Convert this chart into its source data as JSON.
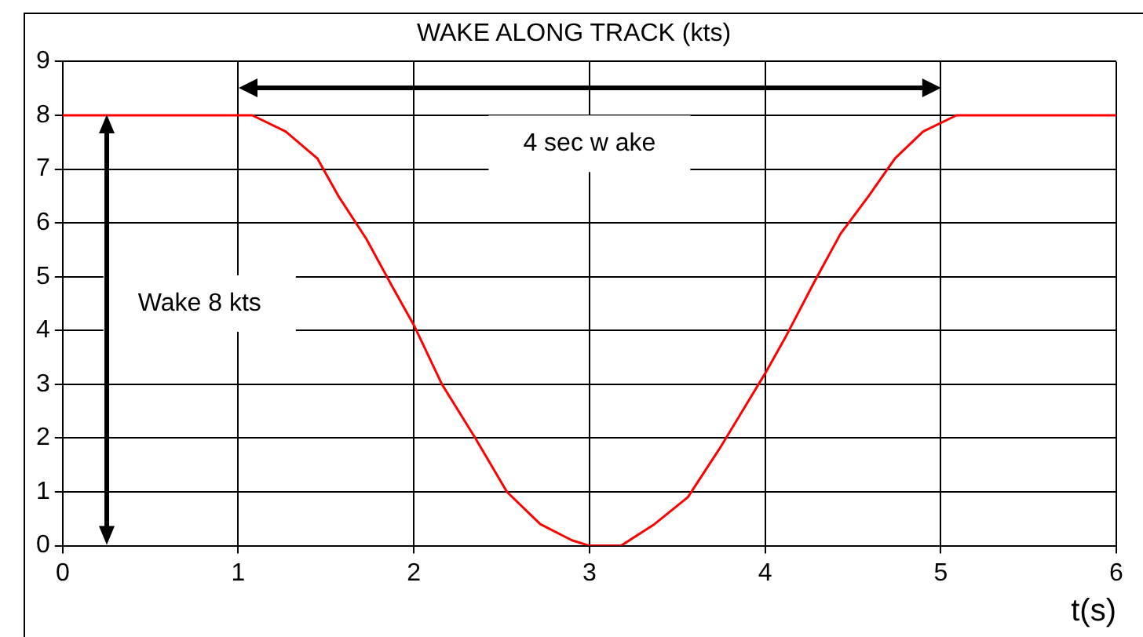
{
  "chart_data": {
    "type": "line",
    "title": "WAKE ALONG TRACK (kts)",
    "xlabel": "t(s)",
    "x": [
      0,
      1,
      1.08,
      1.27,
      1.45,
      1.57,
      1.73,
      1.88,
      2.0,
      2.16,
      2.35,
      2.53,
      2.72,
      2.9,
      3.0,
      3.18,
      3.37,
      3.56,
      3.74,
      3.87,
      4.0,
      4.12,
      4.28,
      4.43,
      4.59,
      4.74,
      4.9,
      5.09,
      6
    ],
    "series": [
      {
        "color": "#ff0000",
        "values": [
          8,
          8,
          8,
          7.7,
          7.2,
          6.5,
          5.7,
          4.8,
          4.1,
          3.0,
          2.0,
          1.0,
          0.4,
          0.1,
          0,
          0,
          0.4,
          0.9,
          1.8,
          2.5,
          3.2,
          3.9,
          4.9,
          5.8,
          6.5,
          7.2,
          7.7,
          8,
          8
        ]
      }
    ],
    "xlim": [
      0,
      6
    ],
    "xticks": [
      0,
      1,
      2,
      3,
      4,
      5,
      6
    ],
    "ylim": [
      0,
      9
    ],
    "yticks": [
      0,
      1,
      2,
      3,
      4,
      5,
      6,
      7,
      8,
      9
    ],
    "grid": true,
    "marker": "none",
    "line_style": "solid",
    "annotations": [
      "4 sec w ake",
      "Wake 8 kts"
    ]
  }
}
